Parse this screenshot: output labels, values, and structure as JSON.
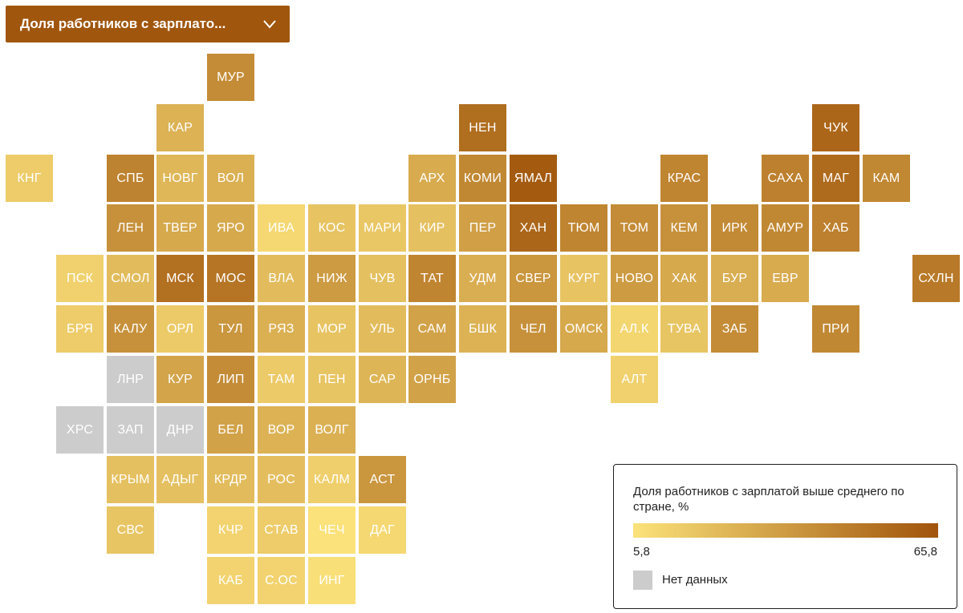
{
  "indicator_select": {
    "label": "Доля работников с зарплато...",
    "icon": "chevron-down-icon"
  },
  "colors": {
    "scale_min": "#fbe27a",
    "scale_max": "#a0540b",
    "no_data": "#cccccc",
    "accent": "#a0560d"
  },
  "legend": {
    "title": "Доля работников с зарплатой выше среднего по стране, %",
    "min_label": "5,8",
    "max_label": "65,8",
    "min_value": 5.8,
    "max_value": 65.8,
    "no_data_label": "Нет данных"
  },
  "regions": [
    {
      "code": "МУР",
      "col": 4,
      "row": 0,
      "value": 42
    },
    {
      "code": "КАР",
      "col": 3,
      "row": 1,
      "value": 26
    },
    {
      "code": "НЕН",
      "col": 9,
      "row": 1,
      "value": 55
    },
    {
      "code": "ЧУК",
      "col": 16,
      "row": 1,
      "value": 58
    },
    {
      "code": "КНГ",
      "col": 0,
      "row": 2,
      "value": 15
    },
    {
      "code": "СПБ",
      "col": 2,
      "row": 2,
      "value": 46
    },
    {
      "code": "НОВГ",
      "col": 3,
      "row": 2,
      "value": 24
    },
    {
      "code": "ВОЛ",
      "col": 4,
      "row": 2,
      "value": 27
    },
    {
      "code": "АРХ",
      "col": 8,
      "row": 2,
      "value": 29
    },
    {
      "code": "КОМИ",
      "col": 9,
      "row": 2,
      "value": 44
    },
    {
      "code": "ЯМАЛ",
      "col": 10,
      "row": 2,
      "value": 63
    },
    {
      "code": "КРАС",
      "col": 13,
      "row": 2,
      "value": 45
    },
    {
      "code": "САХА",
      "col": 15,
      "row": 2,
      "value": 47
    },
    {
      "code": "МАГ",
      "col": 16,
      "row": 2,
      "value": 56
    },
    {
      "code": "КАМ",
      "col": 17,
      "row": 2,
      "value": 44
    },
    {
      "code": "ЛЕН",
      "col": 2,
      "row": 3,
      "value": 40
    },
    {
      "code": "ТВЕР",
      "col": 3,
      "row": 3,
      "value": 30
    },
    {
      "code": "ЯРО",
      "col": 4,
      "row": 3,
      "value": 30
    },
    {
      "code": "ИВА",
      "col": 5,
      "row": 3,
      "value": 10
    },
    {
      "code": "КОС",
      "col": 6,
      "row": 3,
      "value": 19
    },
    {
      "code": "МАРИ",
      "col": 7,
      "row": 3,
      "value": 17
    },
    {
      "code": "КИР",
      "col": 8,
      "row": 3,
      "value": 20
    },
    {
      "code": "ПЕР",
      "col": 9,
      "row": 3,
      "value": 34
    },
    {
      "code": "ХАН",
      "col": 10,
      "row": 3,
      "value": 58
    },
    {
      "code": "ТЮМ",
      "col": 11,
      "row": 3,
      "value": 45
    },
    {
      "code": "ТОМ",
      "col": 12,
      "row": 3,
      "value": 42
    },
    {
      "code": "КЕМ",
      "col": 13,
      "row": 3,
      "value": 40
    },
    {
      "code": "ИРК",
      "col": 14,
      "row": 3,
      "value": 43
    },
    {
      "code": "АМУР",
      "col": 15,
      "row": 3,
      "value": 44
    },
    {
      "code": "ХАБ",
      "col": 16,
      "row": 3,
      "value": 47
    },
    {
      "code": "ПСК",
      "col": 1,
      "row": 4,
      "value": 13
    },
    {
      "code": "СМОЛ",
      "col": 2,
      "row": 4,
      "value": 22
    },
    {
      "code": "МСК",
      "col": 3,
      "row": 4,
      "value": 54
    },
    {
      "code": "МОС",
      "col": 4,
      "row": 4,
      "value": 52
    },
    {
      "code": "ВЛА",
      "col": 5,
      "row": 4,
      "value": 22
    },
    {
      "code": "НИЖ",
      "col": 6,
      "row": 4,
      "value": 36
    },
    {
      "code": "ЧУВ",
      "col": 7,
      "row": 4,
      "value": 20
    },
    {
      "code": "ТАТ",
      "col": 8,
      "row": 4,
      "value": 45
    },
    {
      "code": "УДМ",
      "col": 9,
      "row": 4,
      "value": 28
    },
    {
      "code": "СВЕР",
      "col": 10,
      "row": 4,
      "value": 38
    },
    {
      "code": "КУРГ",
      "col": 11,
      "row": 4,
      "value": 19
    },
    {
      "code": "НОВО",
      "col": 12,
      "row": 4,
      "value": 36
    },
    {
      "code": "ХАК",
      "col": 13,
      "row": 4,
      "value": 30
    },
    {
      "code": "БУР",
      "col": 14,
      "row": 4,
      "value": 28
    },
    {
      "code": "ЕВР",
      "col": 15,
      "row": 4,
      "value": 29
    },
    {
      "code": "СХЛН",
      "col": 18,
      "row": 4,
      "value": 50
    },
    {
      "code": "БРЯ",
      "col": 1,
      "row": 5,
      "value": 15
    },
    {
      "code": "КАЛУ",
      "col": 2,
      "row": 5,
      "value": 40
    },
    {
      "code": "ОРЛ",
      "col": 3,
      "row": 5,
      "value": 16
    },
    {
      "code": "ТУЛ",
      "col": 4,
      "row": 5,
      "value": 38
    },
    {
      "code": "РЯЗ",
      "col": 5,
      "row": 5,
      "value": 27
    },
    {
      "code": "МОР",
      "col": 6,
      "row": 5,
      "value": 19
    },
    {
      "code": "УЛЬ",
      "col": 7,
      "row": 5,
      "value": 22
    },
    {
      "code": "САМ",
      "col": 8,
      "row": 5,
      "value": 33
    },
    {
      "code": "БШК",
      "col": 9,
      "row": 5,
      "value": 26
    },
    {
      "code": "ЧЕЛ",
      "col": 10,
      "row": 5,
      "value": 40
    },
    {
      "code": "ОМСК",
      "col": 11,
      "row": 5,
      "value": 30
    },
    {
      "code": "АЛ.К",
      "col": 12,
      "row": 5,
      "value": 11
    },
    {
      "code": "ТУВА",
      "col": 13,
      "row": 5,
      "value": 18
    },
    {
      "code": "ЗАБ",
      "col": 14,
      "row": 5,
      "value": 42
    },
    {
      "code": "ПРИ",
      "col": 16,
      "row": 5,
      "value": 44
    },
    {
      "code": "ЛНР",
      "col": 2,
      "row": 6,
      "value": null
    },
    {
      "code": "КУР",
      "col": 3,
      "row": 6,
      "value": 32
    },
    {
      "code": "ЛИП",
      "col": 4,
      "row": 6,
      "value": 42
    },
    {
      "code": "ТАМ",
      "col": 5,
      "row": 6,
      "value": 16
    },
    {
      "code": "ПЕН",
      "col": 6,
      "row": 6,
      "value": 18
    },
    {
      "code": "САР",
      "col": 7,
      "row": 6,
      "value": 25
    },
    {
      "code": "ОРНБ",
      "col": 8,
      "row": 6,
      "value": 33
    },
    {
      "code": "АЛТ",
      "col": 12,
      "row": 6,
      "value": 13
    },
    {
      "code": "ХРС",
      "col": 1,
      "row": 7,
      "value": null
    },
    {
      "code": "ЗАП",
      "col": 2,
      "row": 7,
      "value": null
    },
    {
      "code": "ДНР",
      "col": 3,
      "row": 7,
      "value": null
    },
    {
      "code": "БЕЛ",
      "col": 4,
      "row": 7,
      "value": 33
    },
    {
      "code": "ВОР",
      "col": 5,
      "row": 7,
      "value": 26
    },
    {
      "code": "ВОЛГ",
      "col": 6,
      "row": 7,
      "value": 27
    },
    {
      "code": "КРЫМ",
      "col": 2,
      "row": 8,
      "value": 20
    },
    {
      "code": "АДЫГ",
      "col": 3,
      "row": 8,
      "value": 20
    },
    {
      "code": "КРДР",
      "col": 4,
      "row": 8,
      "value": 22
    },
    {
      "code": "РОС",
      "col": 5,
      "row": 8,
      "value": 21
    },
    {
      "code": "КАЛМ",
      "col": 6,
      "row": 8,
      "value": 14
    },
    {
      "code": "АСТ",
      "col": 7,
      "row": 8,
      "value": 38
    },
    {
      "code": "СВС",
      "col": 2,
      "row": 9,
      "value": 18
    },
    {
      "code": "КЧР",
      "col": 4,
      "row": 9,
      "value": 12
    },
    {
      "code": "СТАВ",
      "col": 5,
      "row": 9,
      "value": 15
    },
    {
      "code": "ЧЕЧ",
      "col": 6,
      "row": 9,
      "value": 6
    },
    {
      "code": "ДАГ",
      "col": 7,
      "row": 9,
      "value": 10
    },
    {
      "code": "КАБ",
      "col": 4,
      "row": 10,
      "value": 12
    },
    {
      "code": "С.ОС",
      "col": 5,
      "row": 10,
      "value": 12
    },
    {
      "code": "ИНГ",
      "col": 6,
      "row": 10,
      "value": 7
    }
  ]
}
